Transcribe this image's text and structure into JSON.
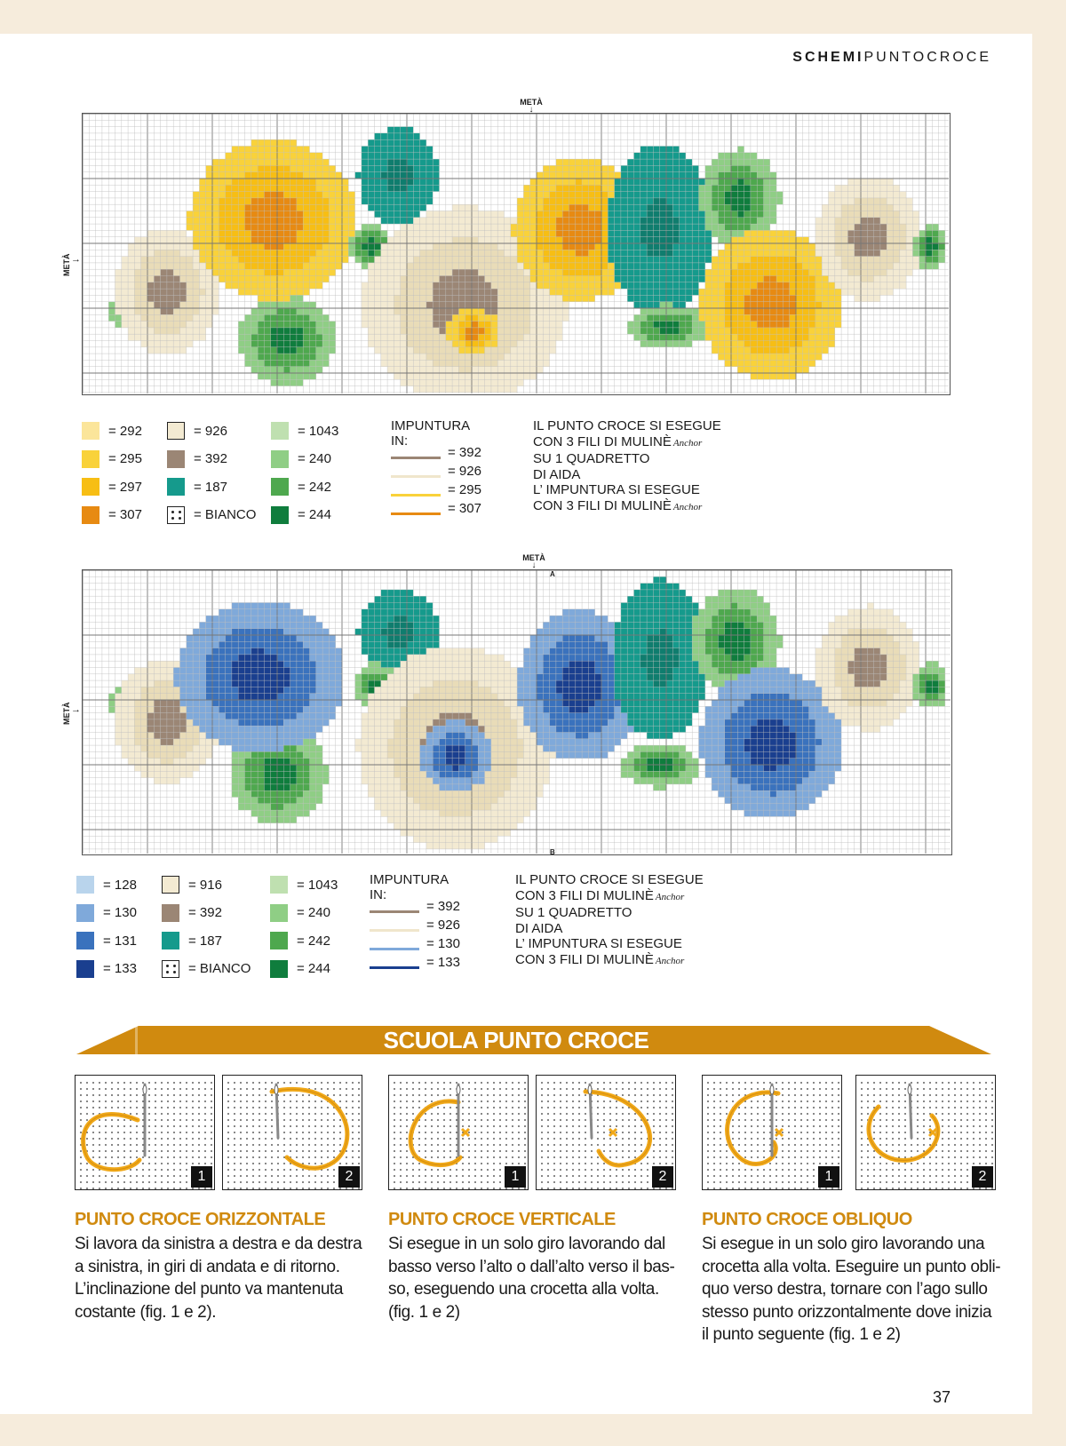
{
  "header": {
    "part1": "SCHEMI",
    "part2": "PUNTOCROCE"
  },
  "charts": {
    "meta_label": "METÀ",
    "letter_a": "A",
    "letter_b": "B"
  },
  "legend1": {
    "col1": [
      {
        "color": "#fbe59a",
        "code": "= 292"
      },
      {
        "color": "#f9d23a",
        "code": "= 295"
      },
      {
        "color": "#f7be14",
        "code": "= 297"
      },
      {
        "color": "#e78a12",
        "code": "= 307"
      }
    ],
    "col2": [
      {
        "color": "#f3ead2",
        "code": "= 926",
        "style": "box"
      },
      {
        "color": "#9b8675",
        "code": "= 392"
      },
      {
        "color": "#159a8c",
        "code": "= 187"
      },
      {
        "color": "#ffffff",
        "code": "= BIANCO",
        "style": "dots"
      }
    ],
    "col3": [
      {
        "color": "#bfe0b0",
        "code": "= 1043"
      },
      {
        "color": "#8fce85",
        "code": "= 240"
      },
      {
        "color": "#4ea84e",
        "code": "= 242"
      },
      {
        "color": "#0f7d3d",
        "code": "= 244"
      }
    ],
    "impuntura_title": "IMPUNTURA IN:",
    "impuntura": [
      {
        "color": "#9b8675",
        "code": "= 392"
      },
      {
        "color": "#f0e6cc",
        "code": "= 926"
      },
      {
        "color": "#f9d23a",
        "code": "= 295"
      },
      {
        "color": "#e78a12",
        "code": "= 307"
      }
    ],
    "note": [
      "IL PUNTO CROCE SI ESEGUE",
      "CON 3 FILI DI MULINÈ",
      "SU 1 QUADRETTO",
      "DI AIDA",
      "L’ IMPUNTURA SI ESEGUE",
      "CON 3 FILI DI MULINÈ"
    ],
    "anchor": "Anchor"
  },
  "legend2": {
    "col1": [
      {
        "color": "#b9d4ec",
        "code": "= 128"
      },
      {
        "color": "#7fa9da",
        "code": "= 130"
      },
      {
        "color": "#3a72bd",
        "code": "= 131"
      },
      {
        "color": "#1a3f8f",
        "code": "= 133"
      }
    ],
    "col2": [
      {
        "color": "#f3ead2",
        "code": "= 916",
        "style": "box"
      },
      {
        "color": "#9b8675",
        "code": "= 392"
      },
      {
        "color": "#159a8c",
        "code": "= 187"
      },
      {
        "color": "#ffffff",
        "code": "= BIANCO",
        "style": "dots"
      }
    ],
    "col3": [
      {
        "color": "#bfe0b0",
        "code": "= 1043"
      },
      {
        "color": "#8fce85",
        "code": "= 240"
      },
      {
        "color": "#4ea84e",
        "code": "= 242"
      },
      {
        "color": "#0f7d3d",
        "code": "= 244"
      }
    ],
    "impuntura_title": "IMPUNTURA IN:",
    "impuntura": [
      {
        "color": "#9b8675",
        "code": "= 392"
      },
      {
        "color": "#f0e6cc",
        "code": "= 926"
      },
      {
        "color": "#7fa9da",
        "code": "= 130"
      },
      {
        "color": "#1a3f8f",
        "code": "= 133"
      }
    ],
    "note": [
      "IL PUNTO CROCE SI ESEGUE",
      "CON 3 FILI DI MULINÈ",
      "SU 1 QUADRETTO",
      "DI AIDA",
      "L’ IMPUNTURA SI ESEGUE",
      "CON 3 FILI DI MULINÈ"
    ],
    "anchor": "Anchor"
  },
  "banner": {
    "title": "SCUOLA PUNTO CROCE",
    "color": "#d08a0f"
  },
  "figures": {
    "num1": "1",
    "num2": "2"
  },
  "sections": [
    {
      "title": "PUNTO CROCE ORIZZONTALE",
      "lines": [
        "Si lavora da sinistra a destra e da destra",
        "a sinistra, in giri di andata e di ritorno.",
        "L’inclinazione del punto va mantenuta",
        "costante (fig. 1 e 2)."
      ]
    },
    {
      "title": "PUNTO CROCE VERTICALE",
      "lines": [
        "Si esegue in un solo giro lavorando dal",
        "basso verso l’alto o dall’alto verso il bas-",
        "so, eseguendo una crocetta alla volta.",
        "(fig. 1 e 2)"
      ]
    },
    {
      "title": "PUNTO CROCE OBLIQUO",
      "lines": [
        "Si esegue in un solo giro lavorando una",
        "crocetta alla volta. Eseguire un punto obli-",
        "quo verso destra, tornare con l’ago sullo",
        "stesso punto orizzontalmente dove inizia",
        "il punto seguente (fig. 1 e 2)"
      ]
    }
  ],
  "page_number": "37"
}
